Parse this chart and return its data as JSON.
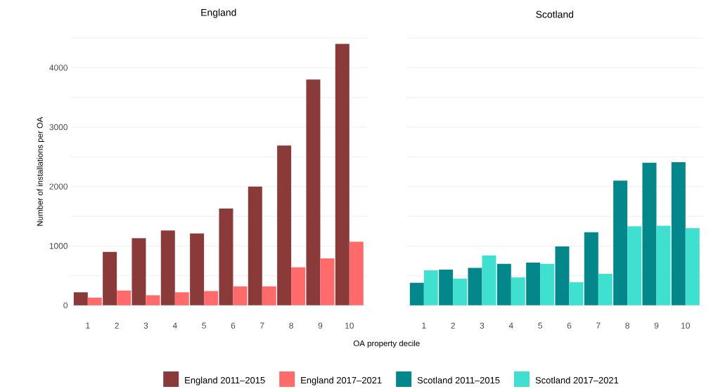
{
  "chart_data": [
    {
      "type": "bar",
      "title": "England",
      "xlabel": "OA property decile",
      "ylabel": "Number of installations per OA",
      "categories": [
        "1",
        "2",
        "3",
        "4",
        "5",
        "6",
        "7",
        "8",
        "9",
        "10"
      ],
      "series": [
        {
          "name": "England 2011–2015",
          "color": "#8b3a3a",
          "values": [
            220,
            900,
            1130,
            1260,
            1210,
            1630,
            2000,
            2690,
            3800,
            4400
          ]
        },
        {
          "name": "England 2017–2021",
          "color": "#ff6b6b",
          "values": [
            130,
            250,
            170,
            220,
            240,
            320,
            320,
            640,
            790,
            1070
          ]
        }
      ],
      "yticks": [
        0,
        {
          "value": 500,
          "label": null
        },
        1000,
        {
          "value": 1500,
          "label": null
        },
        2000,
        {
          "value": 2500,
          "label": null
        },
        3000,
        {
          "value": 3500,
          "label": null
        },
        4000,
        {
          "value": 4500,
          "label": null
        }
      ],
      "ylim": [
        0,
        4500
      ],
      "grid": "y",
      "legend": "bottom"
    },
    {
      "type": "bar",
      "title": "Scotland",
      "categories": [
        "1",
        "2",
        "3",
        "4",
        "5",
        "6",
        "7",
        "8",
        "9",
        "10"
      ],
      "series": [
        {
          "name": "Scotland 2011–2015",
          "color": "#03878a",
          "values": [
            380,
            600,
            630,
            700,
            720,
            990,
            1230,
            2100,
            2400,
            2410
          ]
        },
        {
          "name": "Scotland 2017–2021",
          "color": "#40e0d0",
          "values": [
            590,
            450,
            840,
            470,
            700,
            390,
            530,
            1330,
            1340,
            1300
          ]
        }
      ],
      "yticks": [
        0,
        {
          "value": 500,
          "label": null
        },
        1000,
        {
          "value": 1500,
          "label": null
        },
        2000,
        {
          "value": 2500,
          "label": null
        },
        3000,
        {
          "value": 3500,
          "label": null
        },
        4000,
        {
          "value": 4500,
          "label": null
        }
      ],
      "ylim": [
        0,
        4500
      ],
      "grid": "y",
      "legend": "bottom",
      "tick_labels": "x"
    }
  ]
}
